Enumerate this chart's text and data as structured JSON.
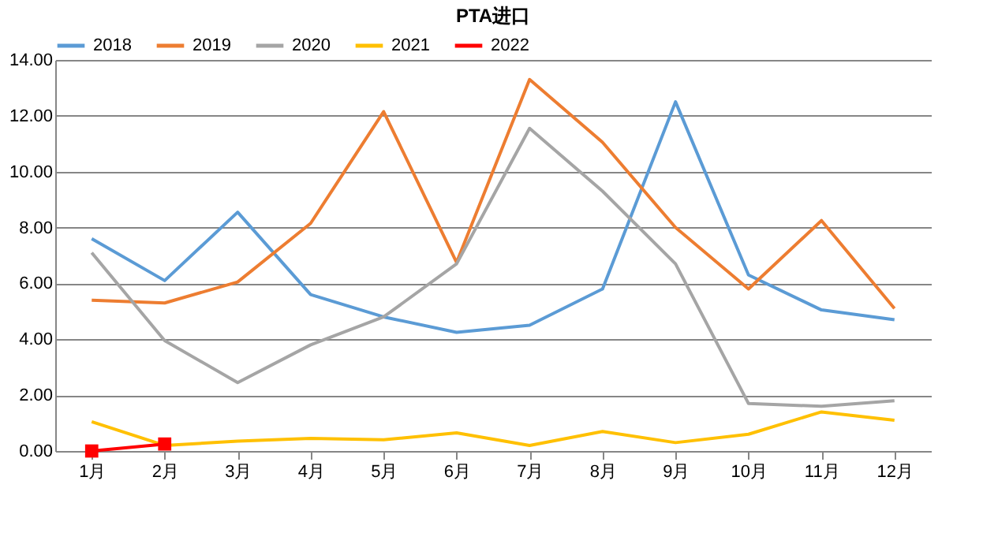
{
  "chart_data": {
    "type": "line",
    "title": "PTA进口",
    "categories": [
      "1月",
      "2月",
      "3月",
      "4月",
      "5月",
      "6月",
      "7月",
      "8月",
      "9月",
      "10月",
      "11月",
      "12月"
    ],
    "series": [
      {
        "name": "2018",
        "color": "#5b9bd5",
        "values": [
          7.6,
          6.1,
          8.55,
          5.6,
          4.8,
          4.25,
          4.5,
          5.8,
          12.5,
          6.3,
          5.05,
          4.7
        ]
      },
      {
        "name": "2019",
        "color": "#ed7d31",
        "values": [
          5.4,
          5.3,
          6.05,
          8.15,
          12.15,
          6.75,
          13.3,
          11.05,
          8.0,
          5.8,
          8.25,
          5.1
        ]
      },
      {
        "name": "2020",
        "color": "#a5a5a5",
        "values": [
          7.1,
          3.95,
          2.45,
          3.8,
          4.8,
          6.7,
          11.55,
          9.3,
          6.7,
          1.7,
          1.6,
          1.8
        ]
      },
      {
        "name": "2021",
        "color": "#ffc000",
        "values": [
          1.05,
          0.2,
          0.35,
          0.45,
          0.4,
          0.65,
          0.2,
          0.7,
          0.3,
          0.6,
          1.4,
          1.1
        ]
      },
      {
        "name": "2022",
        "color": "#ff0000",
        "marker": "square",
        "values": [
          0,
          0.25,
          null,
          null,
          null,
          null,
          null,
          null,
          null,
          null,
          null,
          null
        ]
      }
    ],
    "ylim": [
      0,
      14
    ],
    "yticks": [
      {
        "value": 0,
        "label": "0.00"
      },
      {
        "value": 2,
        "label": "2.00"
      },
      {
        "value": 4,
        "label": "4.00"
      },
      {
        "value": 6,
        "label": "6.00"
      },
      {
        "value": 8,
        "label": "8.00"
      },
      {
        "value": 10,
        "label": "10.00"
      },
      {
        "value": 12,
        "label": "12.00"
      },
      {
        "value": 14,
        "label": "14.00"
      }
    ],
    "grid": "y",
    "legend": "top"
  }
}
